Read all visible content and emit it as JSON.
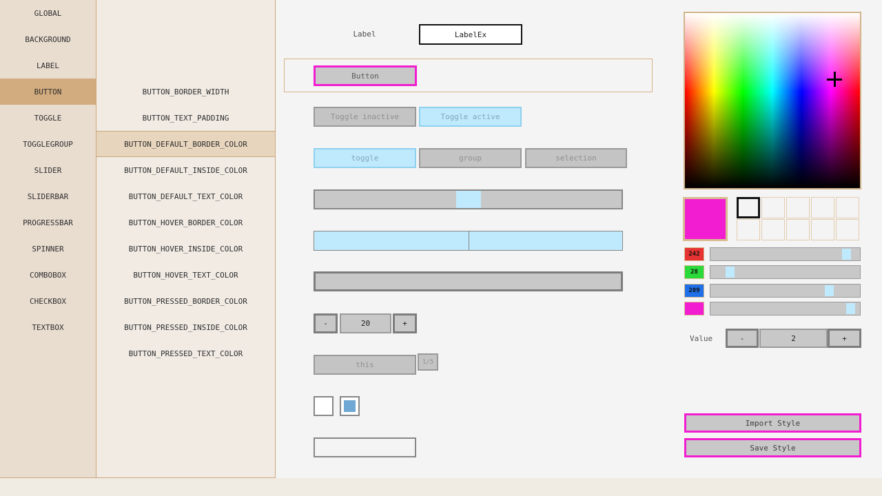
{
  "sidebar": {
    "items": [
      {
        "label": "GLOBAL"
      },
      {
        "label": "BACKGROUND"
      },
      {
        "label": "LABEL"
      },
      {
        "label": "BUTTON",
        "selected": true
      },
      {
        "label": "TOGGLE"
      },
      {
        "label": "TOGGLEGROUP"
      },
      {
        "label": "SLIDER"
      },
      {
        "label": "SLIDERBAR"
      },
      {
        "label": "PROGRESSBAR"
      },
      {
        "label": "SPINNER"
      },
      {
        "label": "COMBOBOX"
      },
      {
        "label": "CHECKBOX"
      },
      {
        "label": "TEXTBOX"
      }
    ]
  },
  "properties": {
    "items": [
      {
        "label": "BUTTON_BORDER_WIDTH"
      },
      {
        "label": "BUTTON_TEXT_PADDING"
      },
      {
        "label": "BUTTON_DEFAULT_BORDER_COLOR",
        "selected": true
      },
      {
        "label": "BUTTON_DEFAULT_INSIDE_COLOR"
      },
      {
        "label": "BUTTON_DEFAULT_TEXT_COLOR"
      },
      {
        "label": "BUTTON_HOVER_BORDER_COLOR"
      },
      {
        "label": "BUTTON_HOVER_INSIDE_COLOR"
      },
      {
        "label": "BUTTON_HOVER_TEXT_COLOR"
      },
      {
        "label": "BUTTON_PRESSED_BORDER_COLOR"
      },
      {
        "label": "BUTTON_PRESSED_INSIDE_COLOR"
      },
      {
        "label": "BUTTON_PRESSED_TEXT_COLOR"
      }
    ]
  },
  "preview": {
    "label_caption": "Label",
    "labelex_text": "LabelEx",
    "button_label": "Button",
    "toggle_inactive_label": "Toggle inactive",
    "toggle_active_label": "Toggle active",
    "togglegroup": {
      "toggle": "toggle",
      "group": "group",
      "selection": "selection"
    },
    "spinner": {
      "decrement": "-",
      "value": "20",
      "increment": "+"
    },
    "combobox": {
      "selected_item": "this",
      "page_badge": "1/5"
    }
  },
  "color_panel": {
    "current_color": "#f21cd1",
    "rgb_sliders": [
      {
        "channel": "red",
        "value": "242"
      },
      {
        "channel": "green",
        "value": "28"
      },
      {
        "channel": "blue",
        "value": "209"
      },
      {
        "channel": "alpha",
        "value": ""
      }
    ],
    "value_label": "Value",
    "value_spinner": {
      "decrement": "-",
      "value": "2",
      "increment": "+"
    },
    "import_button_label": "Import Style",
    "save_button_label": "Save Style"
  },
  "colors": {
    "accent": "#f21cd1",
    "active_highlight": "#bfe9fc",
    "chip_red": "#e63232",
    "chip_green": "#2ad93a",
    "chip_blue": "#1e6fe8",
    "checkbox_check": "#6fa8d4",
    "panel_tan_border": "#d2b48c"
  }
}
